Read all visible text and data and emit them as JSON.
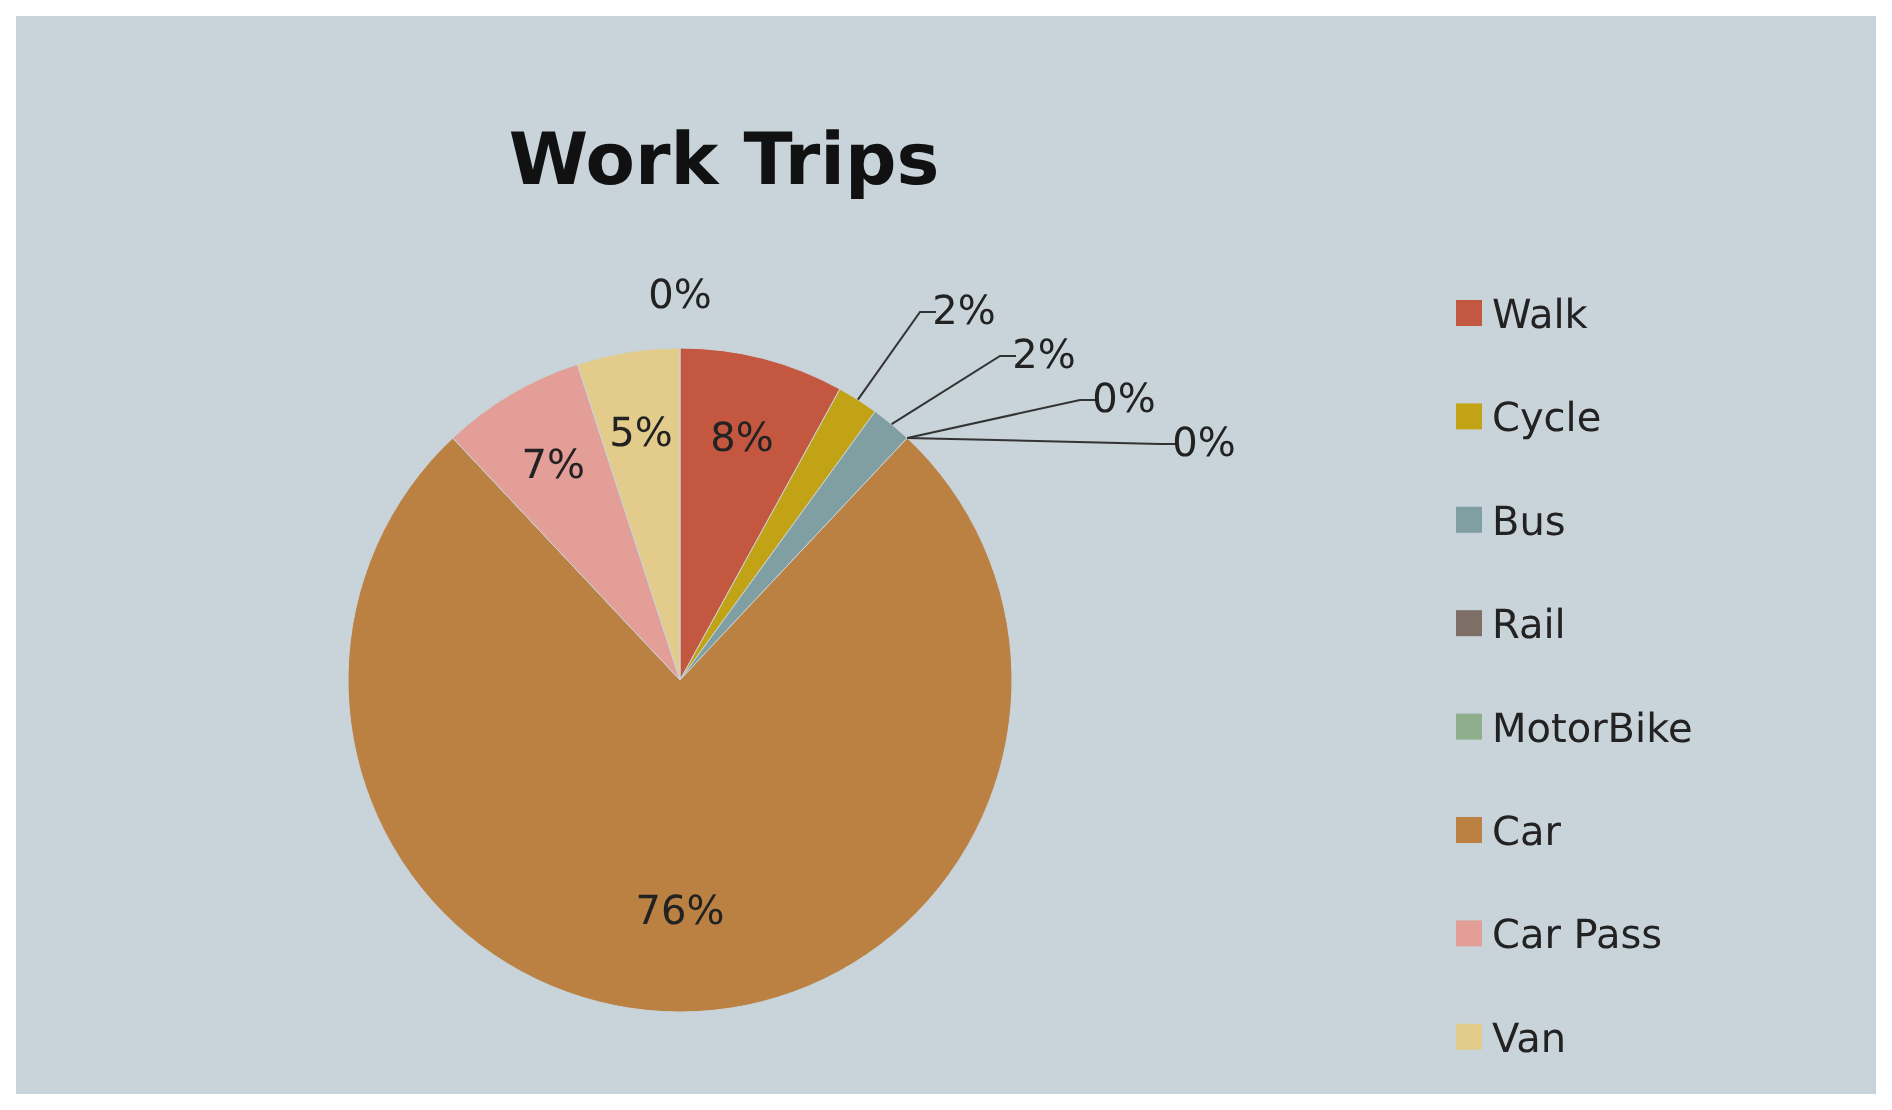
{
  "chart_data": {
    "type": "pie",
    "title": "Work Trips",
    "categories": [
      "Walk",
      "Cycle",
      "Bus",
      "Rail",
      "MotorBike",
      "Car",
      "Car Pass",
      "Van",
      null
    ],
    "values": [
      8,
      2,
      2,
      0,
      0,
      76,
      7,
      5,
      0
    ],
    "value_labels": [
      "8%",
      "2%",
      "2%",
      "0%",
      "0%",
      "76%",
      "7%",
      "5%",
      "0%"
    ],
    "colors": [
      "#c4573f",
      "#c2a315",
      "#7f9fa3",
      "#7d6e66",
      "#8fae8c",
      "#bb8142",
      "#e49e98",
      "#e2cb8b",
      "#9fb6c8"
    ],
    "legend": "right"
  }
}
